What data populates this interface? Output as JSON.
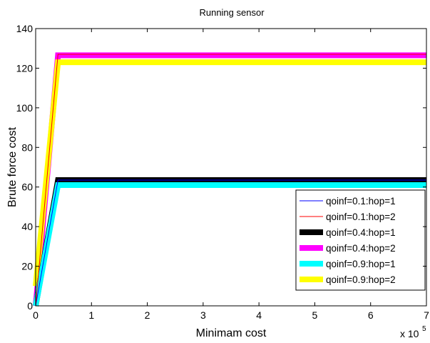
{
  "chart_data": {
    "type": "line",
    "title": "Running sensor",
    "xlabel": "Minimam cost",
    "ylabel": "Brute force cost",
    "x_multiplier": "x 10",
    "x_multiplier_exponent": "5",
    "xlim": [
      0,
      7
    ],
    "ylim": [
      0,
      140
    ],
    "xticks": [
      0,
      1,
      2,
      3,
      4,
      5,
      6,
      7
    ],
    "yticks": [
      0,
      20,
      40,
      60,
      80,
      100,
      120,
      140
    ],
    "grid": false,
    "legend_position": "lower-right",
    "series": [
      {
        "name": "qoinf=0.1:hop=1",
        "color": "#0000ff",
        "x": [
          0,
          0.4,
          7
        ],
        "y": [
          0,
          63.5,
          63.5
        ]
      },
      {
        "name": "qoinf=0.1:hop=2",
        "color": "#ff0000",
        "x": [
          0,
          0.4,
          7
        ],
        "y": [
          0,
          127,
          127
        ]
      },
      {
        "name": "qoinf=0.4:hop=1",
        "color": "#000000",
        "x": [
          0,
          0.4,
          7
        ],
        "y": [
          0,
          63.5,
          63.5
        ]
      },
      {
        "name": "qoinf=0.4:hop=2",
        "color": "#ff00ff",
        "x": [
          0,
          0.4,
          7
        ],
        "y": [
          0,
          126.5,
          126.5
        ]
      },
      {
        "name": "qoinf=0.9:hop=1",
        "color": "#00ffff",
        "x": [
          0,
          0.4,
          7
        ],
        "y": [
          0,
          61,
          61
        ]
      },
      {
        "name": "qoinf=0.9:hop=2",
        "color": "#ffff00",
        "x": [
          0,
          0.4,
          7
        ],
        "y": [
          10,
          123,
          123
        ]
      }
    ]
  }
}
